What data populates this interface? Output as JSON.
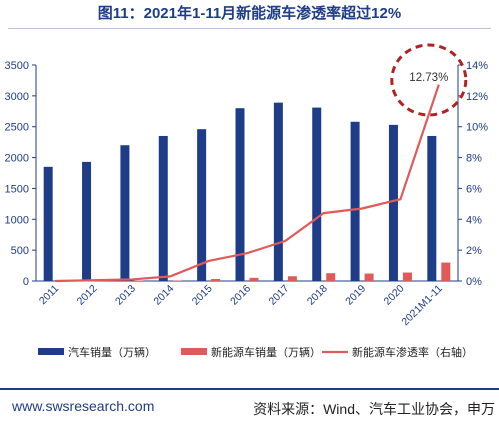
{
  "chart_data": {
    "type": "bar",
    "title": "图11：2021年1-11月新能源车渗透率超过12%",
    "categories": [
      "2011",
      "2012",
      "2013",
      "2014",
      "2015",
      "2016",
      "2017",
      "2018",
      "2019",
      "2020",
      "2021M1-11"
    ],
    "series": [
      {
        "name": "汽车销量（万辆）",
        "type": "bar",
        "axis": "left",
        "color": "#1f3c88",
        "values": [
          1850,
          1930,
          2200,
          2350,
          2460,
          2800,
          2890,
          2810,
          2580,
          2530,
          2350
        ]
      },
      {
        "name": "新能源车销量（万辆）",
        "type": "bar",
        "axis": "left",
        "color": "#e05a5a",
        "values": [
          1,
          1,
          2,
          7,
          33,
          51,
          77,
          126,
          121,
          137,
          299
        ]
      },
      {
        "name": "新能源车渗透率（右轴）",
        "type": "line",
        "axis": "right",
        "color": "#e05a5a",
        "values": [
          0.0,
          0.05,
          0.1,
          0.3,
          1.3,
          1.8,
          2.6,
          4.4,
          4.7,
          5.3,
          12.73
        ]
      }
    ],
    "y_left": {
      "min": 0,
      "max": 3500,
      "ticks": [
        "0",
        "500",
        "1000",
        "1500",
        "2000",
        "2500",
        "3000",
        "3500"
      ]
    },
    "y_right": {
      "min": 0,
      "max": 14,
      "ticks": [
        "0%",
        "2%",
        "4%",
        "6%",
        "8%",
        "10%",
        "12%",
        "14%"
      ]
    },
    "annotation": "12.73%",
    "legend_position": "bottom"
  },
  "footer": {
    "url": "www.swsresearch.com",
    "source": "资料来源：Wind、汽车工业协会，申万"
  }
}
